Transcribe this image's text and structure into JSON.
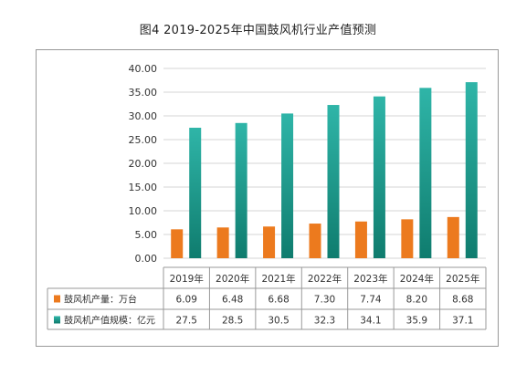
{
  "title": "图4 2019-2025年中国鼓风机行业产值预测",
  "colors": {
    "series1": "#ec7a1e",
    "series2_top": "#2fb5a8",
    "series2_bottom": "#0f7c6e",
    "grid": "#d6d6d6",
    "table_border": "#9a9a9a"
  },
  "chart_data": {
    "type": "bar",
    "title": "图4 2019-2025年中国鼓风机行业产值预测",
    "categories": [
      "2019年",
      "2020年",
      "2021年",
      "2022年",
      "2023年",
      "2024年",
      "2025年"
    ],
    "ylim": [
      0,
      40
    ],
    "yticks": [
      "0.00",
      "5.00",
      "10.00",
      "15.00",
      "20.00",
      "25.00",
      "30.00",
      "35.00",
      "40.00"
    ],
    "grid": true,
    "legend": "bottom-table",
    "series": [
      {
        "name": "鼓风机产量：万台",
        "values": [
          6.09,
          6.48,
          6.68,
          7.3,
          7.74,
          8.2,
          8.68
        ],
        "labels": [
          "6.09",
          "6.48",
          "6.68",
          "7.30",
          "7.74",
          "8.20",
          "8.68"
        ]
      },
      {
        "name": "鼓风机产值规模：亿元",
        "values": [
          27.5,
          28.5,
          30.5,
          32.3,
          34.1,
          35.9,
          37.1
        ],
        "labels": [
          "27.5",
          "28.5",
          "30.5",
          "32.3",
          "34.1",
          "35.9",
          "37.1"
        ]
      }
    ]
  }
}
